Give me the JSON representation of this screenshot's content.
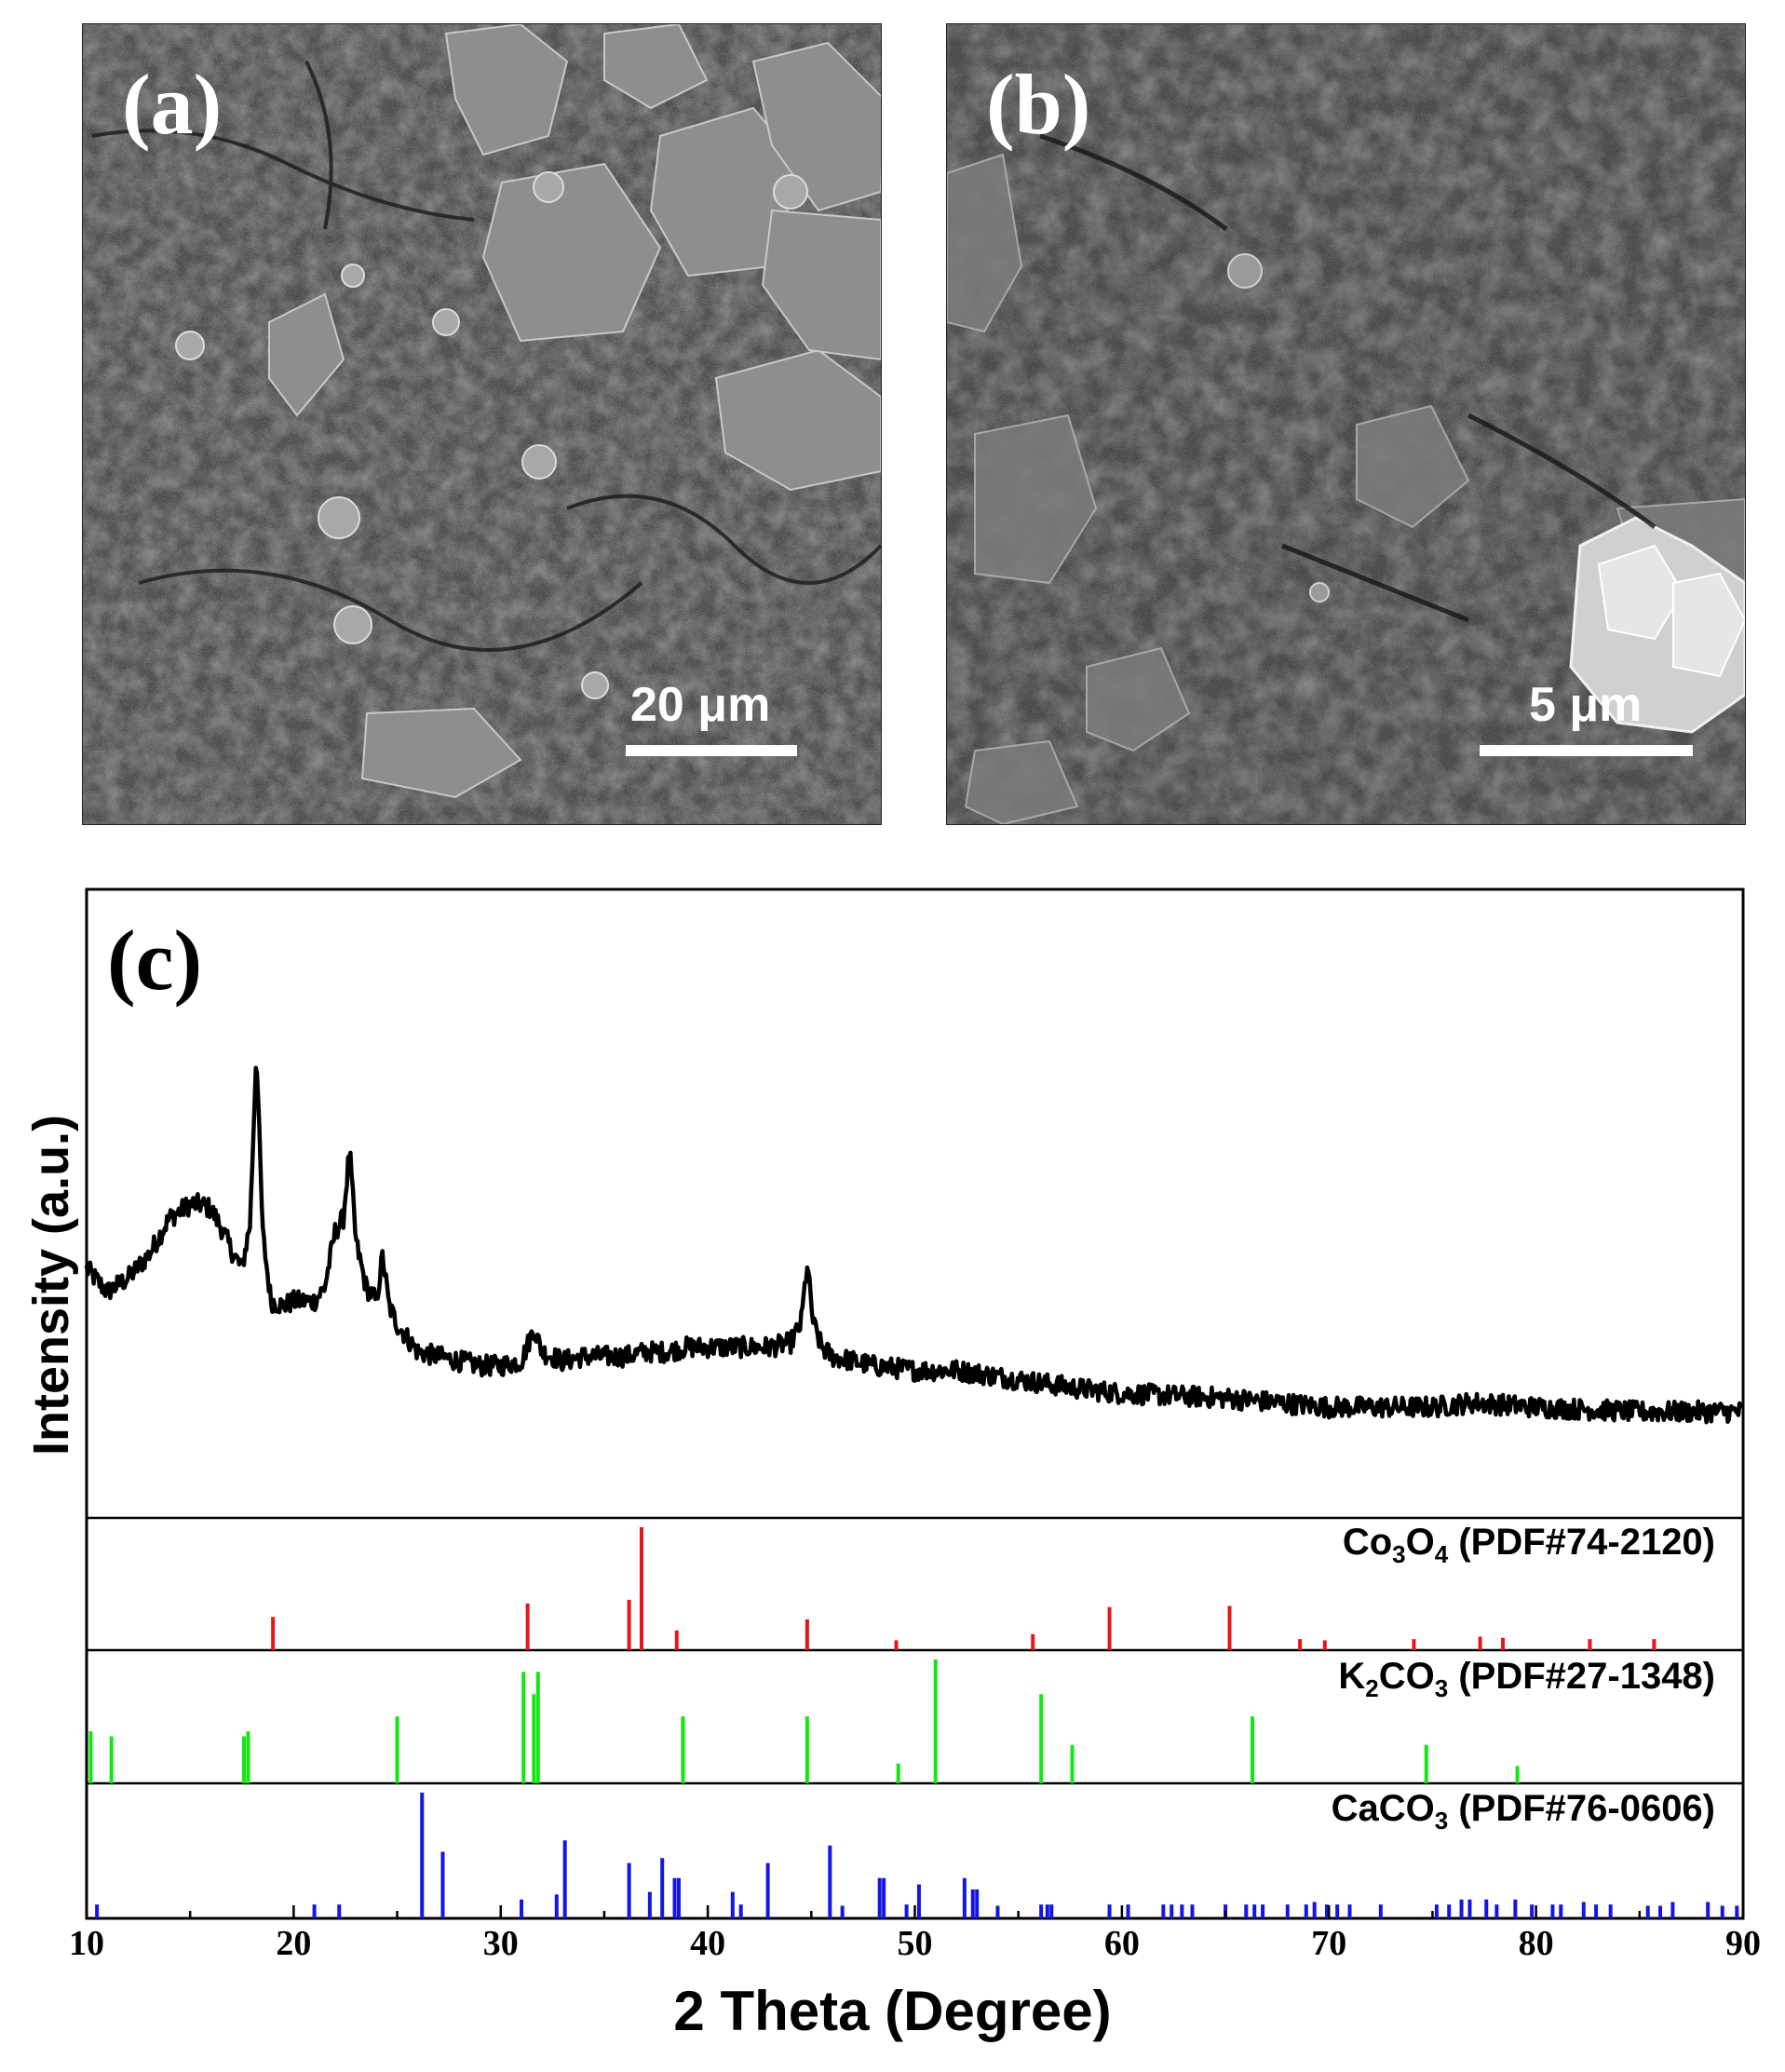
{
  "panels": {
    "a": {
      "label": "(a)",
      "scale_text": "20 μm"
    },
    "b": {
      "label": "(b)",
      "scale_text": "5 μm"
    },
    "c": {
      "label": "(c)"
    }
  },
  "chart_data": {
    "type": "line",
    "xlabel": "2 Theta (Degree)",
    "ylabel": "Intensity (a.u.)",
    "xlim": [
      10,
      90
    ],
    "xticks": [
      10,
      20,
      30,
      40,
      50,
      60,
      70,
      80,
      90
    ],
    "series": [
      {
        "x": [
          10,
          11,
          12,
          13,
          14,
          15,
          15.5,
          16,
          16.5,
          17,
          17.5,
          17.9,
          18.2,
          18.5,
          18.9,
          19.5,
          20,
          21,
          21.5,
          22,
          22.4,
          22.7,
          23,
          23.5,
          24,
          24.3,
          24.6,
          25,
          26,
          27,
          28,
          29,
          30,
          31,
          31.6,
          32,
          33,
          34,
          35,
          36,
          37,
          38,
          39,
          40,
          41,
          42,
          43,
          44,
          44.5,
          44.8,
          45.1,
          45.5,
          46,
          47,
          48,
          50,
          52,
          55,
          58,
          60,
          65,
          70,
          75,
          77,
          80,
          85,
          88,
          90
        ],
        "y": [
          0.52,
          0.47,
          0.5,
          0.55,
          0.63,
          0.66,
          0.66,
          0.65,
          0.61,
          0.56,
          0.52,
          0.62,
          1.0,
          0.6,
          0.45,
          0.44,
          0.45,
          0.45,
          0.48,
          0.6,
          0.63,
          0.78,
          0.58,
          0.48,
          0.45,
          0.55,
          0.44,
          0.4,
          0.34,
          0.33,
          0.32,
          0.31,
          0.31,
          0.32,
          0.39,
          0.34,
          0.32,
          0.33,
          0.33,
          0.33,
          0.34,
          0.34,
          0.35,
          0.35,
          0.35,
          0.35,
          0.35,
          0.36,
          0.4,
          0.53,
          0.4,
          0.35,
          0.33,
          0.32,
          0.31,
          0.3,
          0.3,
          0.28,
          0.26,
          0.25,
          0.24,
          0.22,
          0.22,
          0.23,
          0.22,
          0.21,
          0.21,
          0.21
        ]
      }
    ],
    "references": [
      {
        "name": "Co₃O₄ (PDF#74-2120)",
        "color": "#e8141c",
        "x": [
          19.0,
          31.3,
          36.2,
          36.8,
          38.5,
          44.8,
          49.1,
          55.7,
          59.4,
          65.2,
          68.6,
          69.8,
          74.1,
          77.3,
          78.4,
          82.6,
          85.7
        ],
        "y": [
          0.27,
          0.38,
          0.41,
          1.0,
          0.16,
          0.25,
          0.08,
          0.13,
          0.35,
          0.36,
          0.09,
          0.08,
          0.09,
          0.11,
          0.1,
          0.09,
          0.09
        ]
      },
      {
        "name": "K₂CO₃ (PDF#27-1348)",
        "color": "#14e614",
        "x": [
          10.2,
          11.2,
          17.6,
          17.8,
          25.0,
          31.1,
          31.6,
          31.8,
          38.8,
          44.8,
          49.2,
          51.0,
          56.1,
          57.6,
          66.3,
          74.7,
          79.1
        ],
        "y": [
          0.42,
          0.38,
          0.38,
          0.42,
          0.54,
          0.9,
          0.72,
          0.9,
          0.54,
          0.54,
          0.16,
          1.0,
          0.72,
          0.31,
          0.54,
          0.31,
          0.14
        ]
      },
      {
        "name": "CaCO₃ (PDF#76-0606)",
        "color": "#1414e6",
        "x": [
          10.5,
          21.0,
          22.2,
          26.2,
          27.2,
          31.0,
          32.7,
          33.1,
          36.2,
          37.2,
          37.8,
          38.4,
          38.6,
          41.2,
          41.6,
          42.9,
          45.9,
          46.5,
          48.3,
          48.5,
          49.6,
          50.2,
          52.4,
          52.8,
          53.0,
          54.0,
          56.1,
          56.4,
          56.6,
          59.4,
          60.3,
          62.0,
          62.4,
          62.9,
          63.4,
          65.0,
          66.0,
          66.4,
          66.8,
          68.0,
          68.9,
          69.3,
          69.9,
          70.4,
          71.0,
          72.5,
          75.2,
          75.8,
          76.4,
          76.8,
          77.6,
          78.1,
          79.0,
          79.8,
          80.8,
          81.2,
          82.3,
          82.9,
          83.6,
          85.4,
          86.0,
          86.6,
          88.3,
          89.0,
          89.7
        ],
        "y": [
          0.11,
          0.11,
          0.11,
          1.0,
          0.53,
          0.15,
          0.19,
          0.62,
          0.44,
          0.21,
          0.48,
          0.32,
          0.32,
          0.21,
          0.11,
          0.44,
          0.58,
          0.1,
          0.32,
          0.32,
          0.11,
          0.27,
          0.32,
          0.23,
          0.23,
          0.1,
          0.11,
          0.11,
          0.11,
          0.11,
          0.11,
          0.11,
          0.11,
          0.11,
          0.11,
          0.11,
          0.11,
          0.11,
          0.11,
          0.11,
          0.11,
          0.13,
          0.11,
          0.11,
          0.11,
          0.11,
          0.11,
          0.11,
          0.15,
          0.15,
          0.15,
          0.11,
          0.15,
          0.11,
          0.11,
          0.11,
          0.13,
          0.11,
          0.11,
          0.1,
          0.1,
          0.13,
          0.13,
          0.1,
          0.1
        ]
      }
    ]
  }
}
